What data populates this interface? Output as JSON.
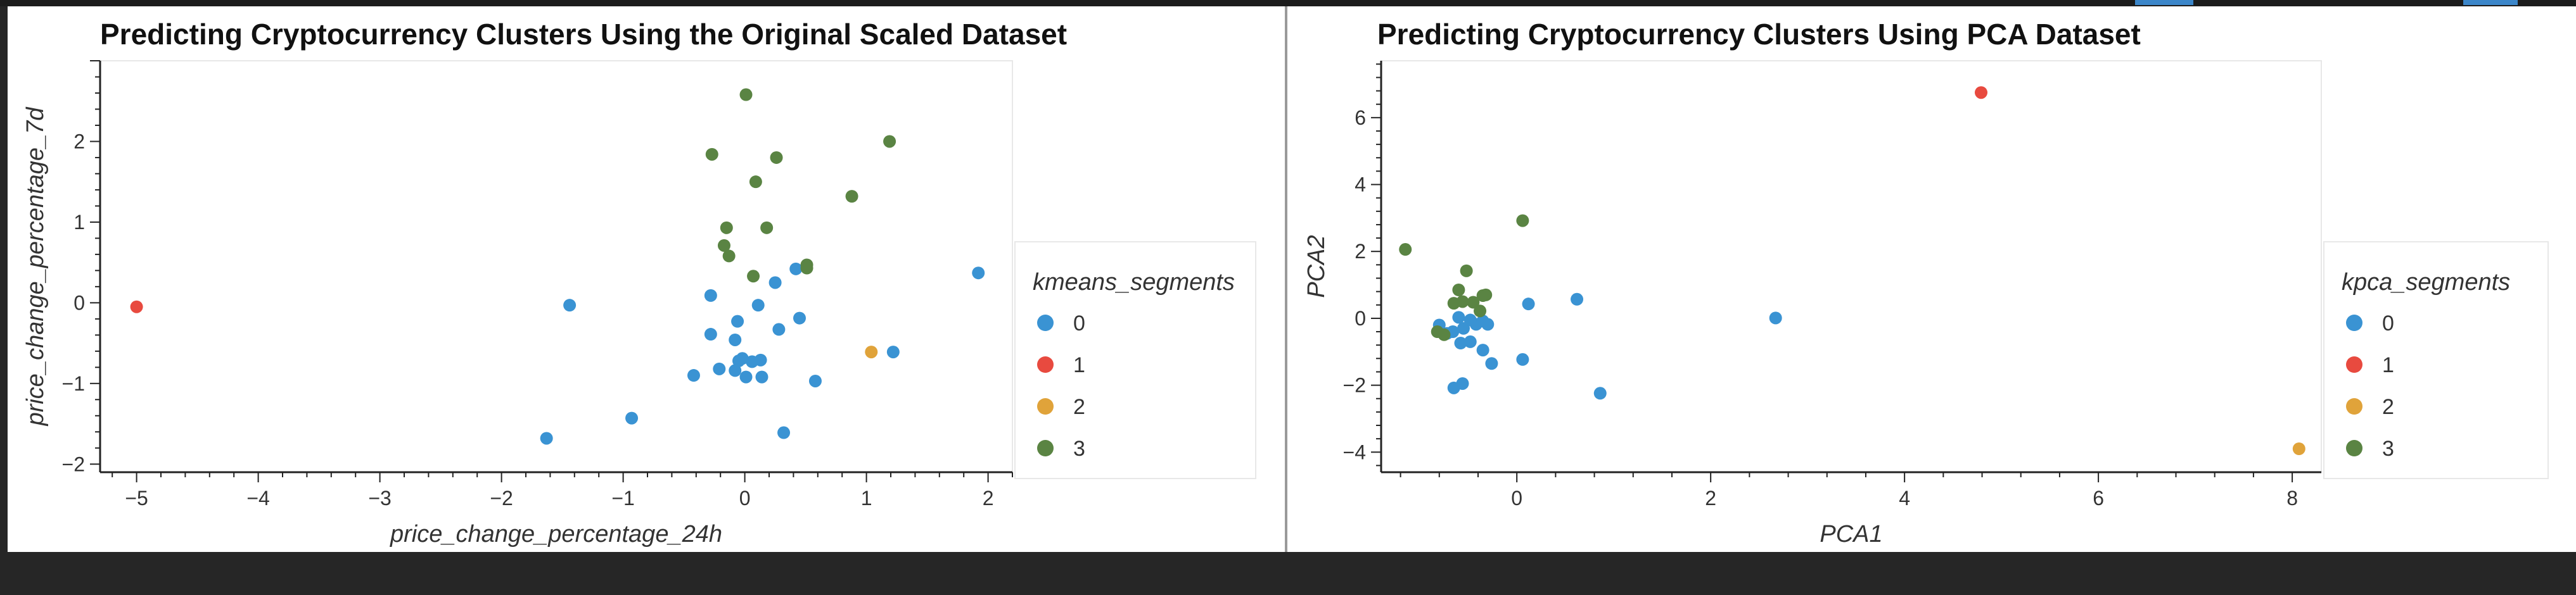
{
  "chart_data": [
    {
      "type": "scatter",
      "title": "Predicting Cryptocurrency Clusters Using the Original Scaled Dataset",
      "xlabel": "price_change_percentage_24h",
      "ylabel": "price_change_percentage_7d",
      "xlim": [
        -5.3,
        2.2
      ],
      "ylim": [
        -2.1,
        3.0
      ],
      "xticks": [
        -5,
        -4,
        -3,
        -2,
        -1,
        0,
        1,
        2
      ],
      "yticks": [
        -2,
        -1,
        0,
        1,
        2
      ],
      "legend_title": "kmeans_segments",
      "legend_position": "right",
      "series": [
        {
          "name": "0",
          "color": "#3a93d3",
          "points": [
            [
              1.92,
              0.37
            ],
            [
              1.22,
              -0.61
            ],
            [
              0.58,
              -0.97
            ],
            [
              0.45,
              -0.19
            ],
            [
              0.42,
              0.42
            ],
            [
              0.28,
              -0.33
            ],
            [
              0.25,
              0.25
            ],
            [
              0.32,
              -1.61
            ],
            [
              0.13,
              -0.71
            ],
            [
              0.14,
              -0.92
            ],
            [
              0.11,
              -0.03
            ],
            [
              0.06,
              -0.73
            ],
            [
              0.01,
              -0.92
            ],
            [
              -0.02,
              -0.69
            ],
            [
              -0.05,
              -0.72
            ],
            [
              -0.08,
              -0.84
            ],
            [
              -0.08,
              -0.46
            ],
            [
              -0.06,
              -0.23
            ],
            [
              -0.21,
              -0.82
            ],
            [
              -0.28,
              -0.39
            ],
            [
              -0.28,
              0.09
            ],
            [
              -0.42,
              -0.9
            ],
            [
              -1.44,
              -0.03
            ],
            [
              -0.93,
              -1.43
            ],
            [
              -1.63,
              -1.68
            ]
          ]
        },
        {
          "name": "1",
          "color": "#e84a3f",
          "points": [
            [
              -5.0,
              -0.05
            ]
          ]
        },
        {
          "name": "2",
          "color": "#e0a33a",
          "points": [
            [
              1.04,
              -0.61
            ]
          ]
        },
        {
          "name": "3",
          "color": "#5a8443",
          "points": [
            [
              0.01,
              2.58
            ],
            [
              1.19,
              2.0
            ],
            [
              0.88,
              1.32
            ],
            [
              0.26,
              1.8
            ],
            [
              0.09,
              1.5
            ],
            [
              -0.27,
              1.84
            ],
            [
              -0.15,
              0.93
            ],
            [
              0.18,
              0.93
            ],
            [
              -0.17,
              0.71
            ],
            [
              -0.13,
              0.58
            ],
            [
              0.07,
              0.33
            ],
            [
              0.51,
              0.47
            ],
            [
              0.51,
              0.43
            ]
          ]
        }
      ]
    },
    {
      "type": "scatter",
      "title": "Predicting Cryptocurrency Clusters Using PCA Dataset",
      "xlabel": "PCA1",
      "ylabel": "PCA2",
      "xlim": [
        -1.4,
        8.3
      ],
      "ylim": [
        -4.6,
        7.7
      ],
      "xticks": [
        0,
        2,
        4,
        6,
        8
      ],
      "yticks": [
        -4,
        -2,
        0,
        2,
        4,
        6
      ],
      "legend_title": "kpca_segments",
      "legend_position": "right",
      "series": [
        {
          "name": "0",
          "color": "#3a93d3",
          "points": [
            [
              2.67,
              0.01
            ],
            [
              0.86,
              -2.24
            ],
            [
              0.62,
              0.57
            ],
            [
              0.12,
              0.43
            ],
            [
              0.06,
              -1.23
            ],
            [
              -0.26,
              -1.35
            ],
            [
              -0.35,
              -0.95
            ],
            [
              -0.3,
              -0.18
            ],
            [
              -0.42,
              -0.18
            ],
            [
              -0.48,
              -0.7
            ],
            [
              -0.58,
              -0.74
            ],
            [
              -0.55,
              -0.3
            ],
            [
              -0.6,
              0.03
            ],
            [
              -0.66,
              -0.4
            ],
            [
              -0.72,
              -0.45
            ],
            [
              -0.56,
              -1.95
            ],
            [
              -0.65,
              -2.08
            ],
            [
              -0.8,
              -0.2
            ],
            [
              -0.35,
              -0.08
            ],
            [
              -0.48,
              -0.05
            ]
          ]
        },
        {
          "name": "1",
          "color": "#e84a3f",
          "points": [
            [
              4.79,
              6.75
            ]
          ]
        },
        {
          "name": "2",
          "color": "#e0a33a",
          "points": [
            [
              8.07,
              -3.9
            ]
          ]
        },
        {
          "name": "3",
          "color": "#5a8443",
          "points": [
            [
              0.06,
              2.92
            ],
            [
              -1.15,
              2.06
            ],
            [
              -0.52,
              1.42
            ],
            [
              -0.6,
              0.85
            ],
            [
              -0.35,
              0.68
            ],
            [
              -0.45,
              0.48
            ],
            [
              -0.65,
              0.45
            ],
            [
              -0.38,
              0.22
            ],
            [
              -0.32,
              0.7
            ],
            [
              -0.56,
              0.5
            ],
            [
              -0.82,
              -0.4
            ],
            [
              -0.75,
              -0.49
            ]
          ]
        }
      ]
    }
  ]
}
